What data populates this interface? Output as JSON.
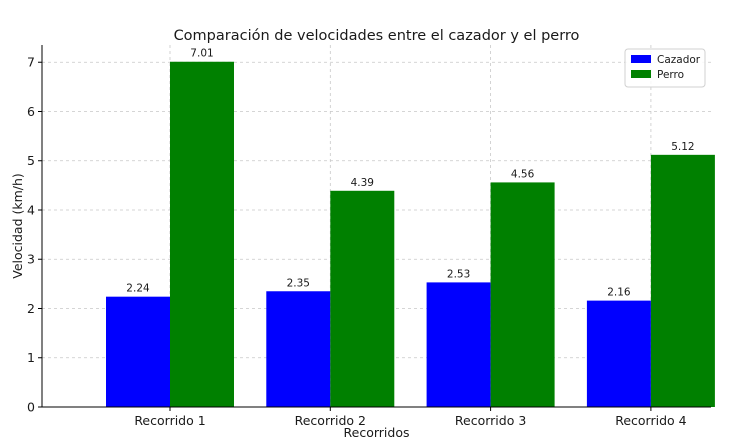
{
  "chart_data": {
    "type": "bar",
    "title": "Comparación de velocidades entre el cazador y el perro",
    "xlabel": "Recorridos",
    "ylabel": "Velocidad (km/h)",
    "categories": [
      "Recorrido 1",
      "Recorrido 2",
      "Recorrido 3",
      "Recorrido 4"
    ],
    "series": [
      {
        "name": "Cazador",
        "values": [
          2.24,
          2.35,
          2.53,
          2.16
        ],
        "color": "#0000ff"
      },
      {
        "name": "Perro",
        "values": [
          7.01,
          4.39,
          4.56,
          5.12
        ],
        "color": "#008000"
      }
    ],
    "ylim": [
      0,
      7.35
    ],
    "yticks": [
      0,
      1,
      2,
      3,
      4,
      5,
      6,
      7
    ],
    "grid": true,
    "legend_position": "top-right"
  }
}
